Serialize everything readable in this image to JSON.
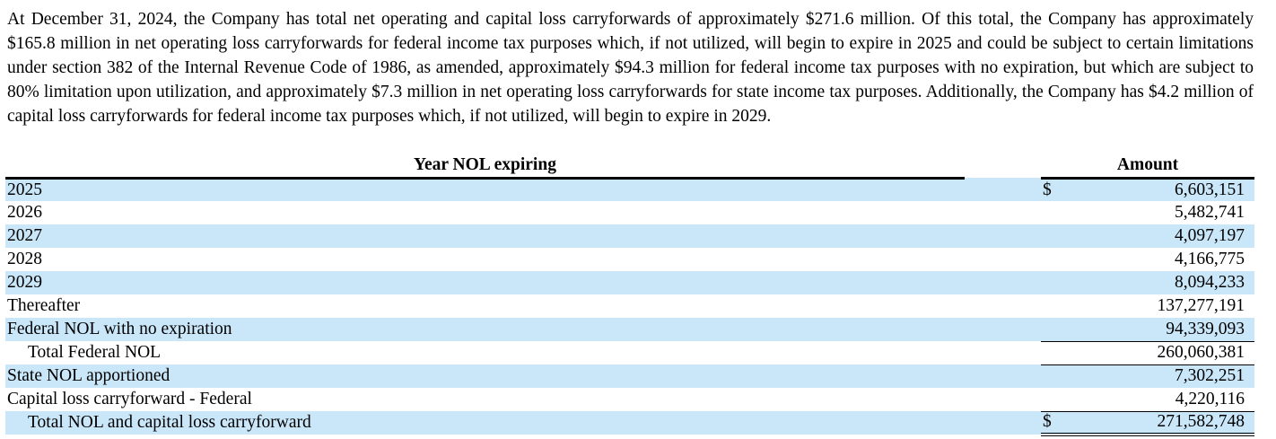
{
  "paragraph": "At December 31, 2024, the Company has total net operating and capital loss carryforwards of approximately $271.6 million. Of this total, the Company has approximately $165.8 million in net operating loss carryforwards for federal income tax purposes which, if not utilized, will begin to expire in 2025 and could be subject to certain limitations under section 382 of the Internal Revenue Code of 1986, as amended, approximately $94.3 million for federal income tax purposes with no expiration, but which are subject to 80% limitation upon utilization, and approximately $7.3 million in net operating loss carryforwards for state income tax purposes. Additionally, the Company has $4.2 million of capital loss carryforwards for federal income tax purposes which, if not utilized, will begin to expire in 2029.",
  "table": {
    "year_header": "Year NOL expiring",
    "amount_header": "Amount",
    "rows": [
      {
        "label": "2025",
        "dollar": "$",
        "amount": "6,603,151",
        "shaded": true,
        "indent": false,
        "bottom": "none"
      },
      {
        "label": "2026",
        "dollar": "",
        "amount": "5,482,741",
        "shaded": false,
        "indent": false,
        "bottom": "none"
      },
      {
        "label": "2027",
        "dollar": "",
        "amount": "4,097,197",
        "shaded": true,
        "indent": false,
        "bottom": "none"
      },
      {
        "label": "2028",
        "dollar": "",
        "amount": "4,166,775",
        "shaded": false,
        "indent": false,
        "bottom": "none"
      },
      {
        "label": "2029",
        "dollar": "",
        "amount": "8,094,233",
        "shaded": true,
        "indent": false,
        "bottom": "none"
      },
      {
        "label": "Thereafter",
        "dollar": "",
        "amount": "137,277,191",
        "shaded": false,
        "indent": false,
        "bottom": "none"
      },
      {
        "label": "Federal NOL with no expiration",
        "dollar": "",
        "amount": "94,339,093",
        "shaded": true,
        "indent": false,
        "bottom": "single"
      },
      {
        "label": "Total Federal NOL",
        "dollar": "",
        "amount": "260,060,381",
        "shaded": false,
        "indent": true,
        "bottom": "single"
      },
      {
        "label": "State NOL apportioned",
        "dollar": "",
        "amount": "7,302,251",
        "shaded": true,
        "indent": false,
        "bottom": "none"
      },
      {
        "label": "Capital loss carryforward - Federal",
        "dollar": "",
        "amount": "4,220,116",
        "shaded": false,
        "indent": false,
        "bottom": "single"
      },
      {
        "label": "Total NOL and capital loss carryforward",
        "dollar": "$",
        "amount": "271,582,748",
        "shaded": true,
        "indent": true,
        "bottom": "double"
      }
    ]
  },
  "colors": {
    "row_stripe": "#cae7fa",
    "rule": "#000000",
    "text": "#000000"
  }
}
